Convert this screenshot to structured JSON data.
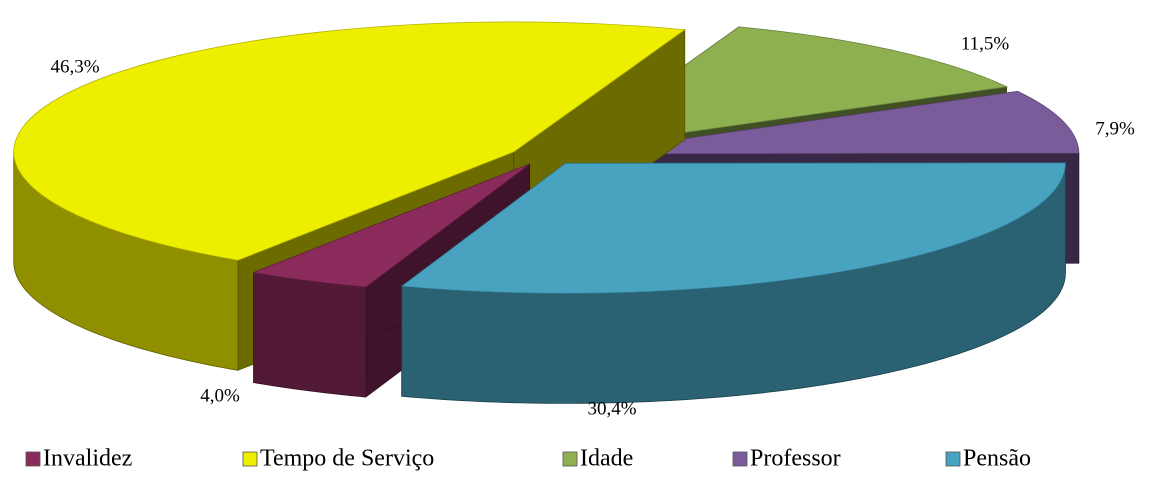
{
  "chart_data": {
    "type": "pie",
    "categories": [
      "Invalidez",
      "Tempo de Serviço",
      "Idade",
      "Professor",
      "Pensão"
    ],
    "values": [
      4.0,
      46.3,
      11.5,
      7.9,
      30.4
    ],
    "value_labels": [
      "4,0%",
      "46,3%",
      "11,5%",
      "7,9%",
      "30,4%"
    ],
    "colors": [
      "#8b2b5c",
      "#eeee00",
      "#8fb050",
      "#7a5c9a",
      "#47a3c0"
    ],
    "legend": "bottom"
  }
}
